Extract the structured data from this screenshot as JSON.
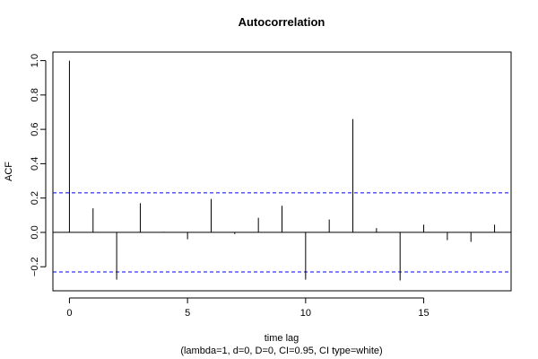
{
  "chart_data": {
    "type": "bar",
    "title": "Autocorrelation",
    "xlabel": "time lag",
    "subtitle": "(lambda=1, d=0, D=0, CI=0.95, CI type=white)",
    "ylabel": "ACF",
    "x": [
      0,
      1,
      2,
      3,
      4,
      5,
      6,
      7,
      8,
      9,
      10,
      11,
      12,
      13,
      14,
      15,
      16,
      17,
      18
    ],
    "values": [
      1.0,
      0.14,
      -0.275,
      0.17,
      0.003,
      -0.04,
      0.195,
      -0.01,
      0.085,
      0.155,
      -0.275,
      0.075,
      0.66,
      0.025,
      -0.28,
      0.045,
      -0.045,
      -0.055,
      0.045
    ],
    "ci_upper": 0.23,
    "ci_lower": -0.23,
    "xlim": [
      -0.7,
      18.7
    ],
    "ylim": [
      -0.34,
      1.05
    ],
    "xticks": [
      0,
      5,
      10,
      15
    ],
    "yticks": [
      -0.2,
      0.0,
      0.2,
      0.4,
      0.6,
      0.8,
      1.0
    ],
    "ytick_labels": [
      "−0.2",
      "0.0",
      "0.2",
      "0.4",
      "0.6",
      "0.8",
      "1.0"
    ],
    "zero_line": true,
    "grid": false,
    "colors": {
      "bars": "#000000",
      "ci": "#0000ff",
      "axes": "#000000"
    }
  }
}
